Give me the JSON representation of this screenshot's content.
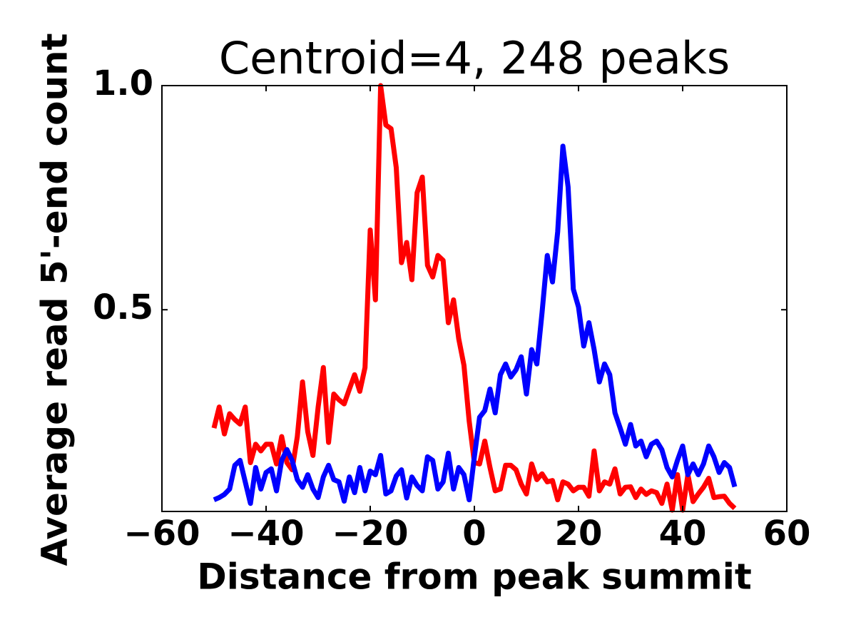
{
  "chart_data": {
    "type": "line",
    "title": "Centroid=4, 248 peaks",
    "xlabel": "Distance from peak summit",
    "ylabel": "Average read 5'-end count",
    "x": [
      -50,
      -49,
      -48,
      -47,
      -46,
      -45,
      -44,
      -43,
      -42,
      -41,
      -40,
      -39,
      -38,
      -37,
      -36,
      -35,
      -34,
      -33,
      -32,
      -31,
      -30,
      -29,
      -28,
      -27,
      -26,
      -25,
      -24,
      -23,
      -22,
      -21,
      -20,
      -19,
      -18,
      -17,
      -16,
      -15,
      -14,
      -13,
      -12,
      -11,
      -10,
      -9,
      -8,
      -7,
      -6,
      -5,
      -4,
      -3,
      -2,
      -1,
      0,
      1,
      2,
      3,
      4,
      5,
      6,
      7,
      8,
      9,
      10,
      11,
      12,
      13,
      14,
      15,
      16,
      17,
      18,
      19,
      20,
      21,
      22,
      23,
      24,
      25,
      26,
      27,
      28,
      29,
      30,
      31,
      32,
      33,
      34,
      35,
      36,
      37,
      38,
      39,
      40,
      41,
      42,
      43,
      44,
      45,
      46,
      47,
      48,
      49,
      50
    ],
    "series": [
      {
        "color": "#ff0000",
        "values": [
          0.236,
          0.283,
          0.223,
          0.268,
          0.255,
          0.245,
          0.283,
          0.159,
          0.2,
          0.185,
          0.2,
          0.2,
          0.156,
          0.217,
          0.159,
          0.143,
          0.217,
          0.339,
          0.228,
          0.175,
          0.283,
          0.371,
          0.204,
          0.312,
          0.299,
          0.29,
          0.323,
          0.355,
          0.318,
          0.371,
          0.678,
          0.522,
          1.0,
          0.912,
          0.904,
          0.817,
          0.605,
          0.65,
          0.567,
          0.761,
          0.796,
          0.599,
          0.573,
          0.621,
          0.61,
          0.471,
          0.522,
          0.435,
          0.376,
          0.252,
          0.159,
          0.156,
          0.207,
          0.148,
          0.096,
          0.1,
          0.153,
          0.153,
          0.143,
          0.111,
          0.089,
          0.156,
          0.121,
          0.134,
          0.116,
          0.119,
          0.076,
          0.116,
          0.111,
          0.096,
          0.104,
          0.104,
          0.084,
          0.185,
          0.096,
          0.116,
          0.111,
          0.145,
          0.089,
          0.104,
          0.105,
          0.081,
          0.1,
          0.088,
          0.096,
          0.092,
          0.068,
          0.111,
          0.053,
          0.132,
          0.053,
          0.132,
          0.072,
          0.089,
          0.104,
          0.124,
          0.081,
          0.083,
          0.084,
          0.068,
          0.057
        ]
      },
      {
        "color": "#0000ff",
        "values": [
          0.076,
          0.081,
          0.088,
          0.1,
          0.153,
          0.164,
          0.116,
          0.068,
          0.148,
          0.1,
          0.137,
          0.145,
          0.096,
          0.164,
          0.188,
          0.164,
          0.121,
          0.104,
          0.132,
          0.1,
          0.081,
          0.127,
          0.153,
          0.121,
          0.116,
          0.073,
          0.127,
          0.092,
          0.148,
          0.096,
          0.14,
          0.132,
          0.175,
          0.089,
          0.096,
          0.129,
          0.143,
          0.08,
          0.127,
          0.108,
          0.096,
          0.172,
          0.164,
          0.1,
          0.116,
          0.18,
          0.1,
          0.148,
          0.132,
          0.076,
          0.172,
          0.26,
          0.275,
          0.323,
          0.27,
          0.355,
          0.379,
          0.35,
          0.366,
          0.395,
          0.312,
          0.411,
          0.379,
          0.494,
          0.621,
          0.562,
          0.674,
          0.865,
          0.774,
          0.546,
          0.506,
          0.419,
          0.471,
          0.411,
          0.339,
          0.379,
          0.355,
          0.27,
          0.236,
          0.2,
          0.244,
          0.196,
          0.207,
          0.172,
          0.2,
          0.207,
          0.188,
          0.148,
          0.127,
          0.164,
          0.196,
          0.132,
          0.156,
          0.132,
          0.156,
          0.196,
          0.172,
          0.137,
          0.159,
          0.148,
          0.105
        ]
      }
    ],
    "xlim": [
      -60,
      60
    ],
    "xticks": [
      {
        "value": -60,
        "label": "−60"
      },
      {
        "value": -40,
        "label": "−40"
      },
      {
        "value": -20,
        "label": "−20"
      },
      0,
      20,
      40,
      60
    ],
    "ylim": [
      0.05,
      1.0
    ],
    "yticks": [
      0.5,
      {
        "value": 1.0,
        "label": "1.0"
      }
    ]
  }
}
